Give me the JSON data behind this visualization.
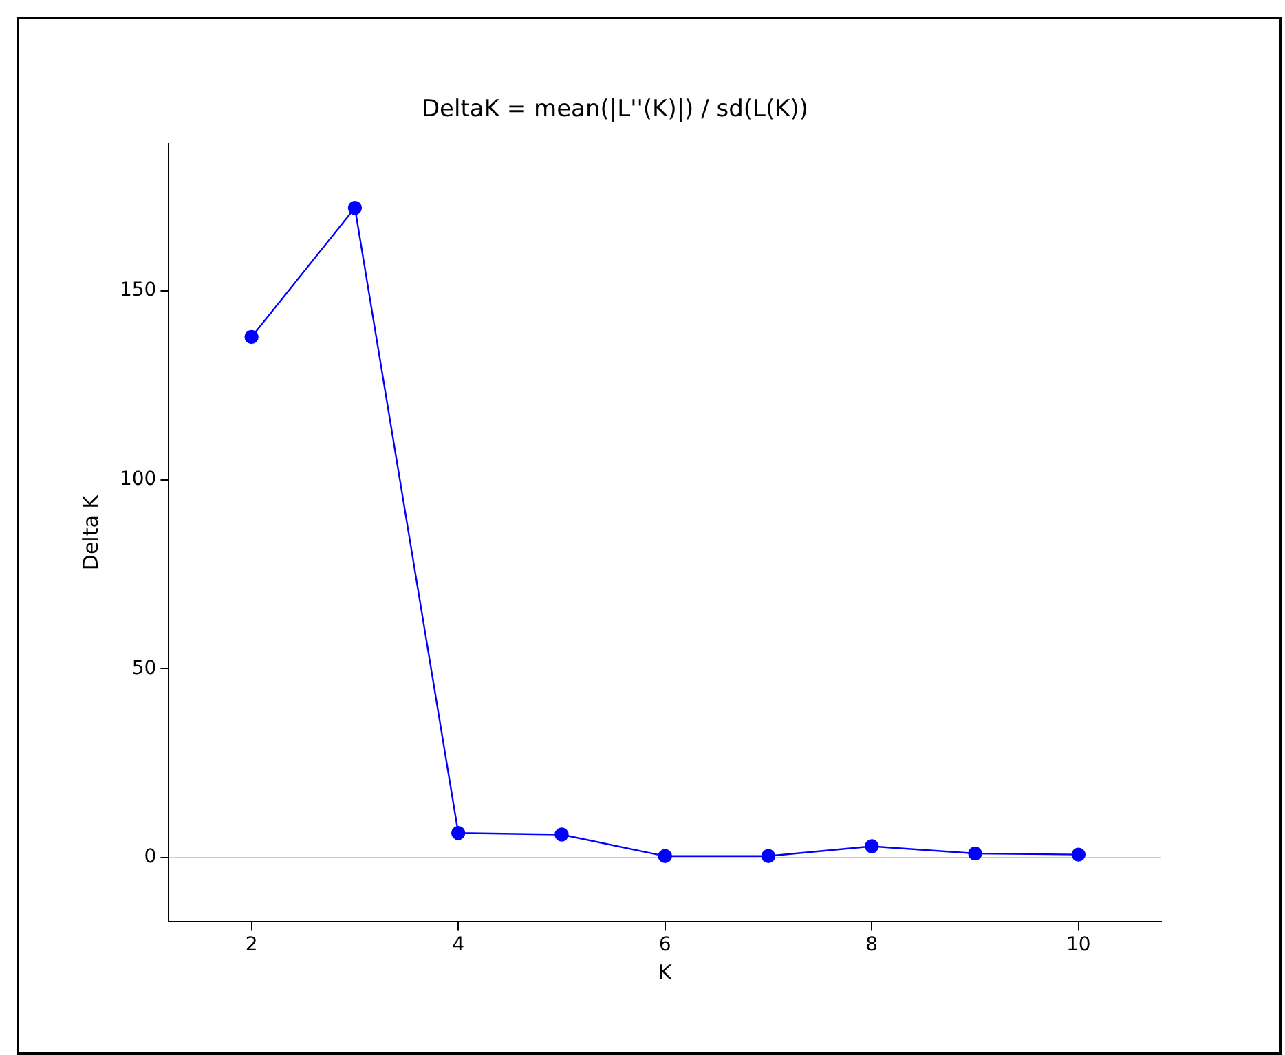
{
  "chart_data": {
    "type": "line",
    "title": "DeltaK = mean(|L''(K)|) / sd(L(K))",
    "xlabel": "K",
    "ylabel": "Delta K",
    "x": [
      2,
      3,
      4,
      5,
      6,
      7,
      8,
      9,
      10
    ],
    "series": [
      {
        "color": "#0000ff",
        "values": [
          137.8,
          172.0,
          6.5,
          6.1,
          0.4,
          0.4,
          3.0,
          1.1,
          0.8
        ]
      }
    ],
    "xlim": [
      1.2,
      10.8
    ],
    "xticks": [
      2,
      4,
      6,
      8,
      10
    ],
    "ylim": [
      -17,
      189
    ],
    "yticks": [
      0,
      50,
      100,
      150
    ],
    "ref_lines": [
      {
        "axis": "y",
        "value": 0,
        "color": "#cccccc"
      }
    ],
    "marker": "circle",
    "line_style": "solid",
    "grid": false,
    "legend": false
  }
}
